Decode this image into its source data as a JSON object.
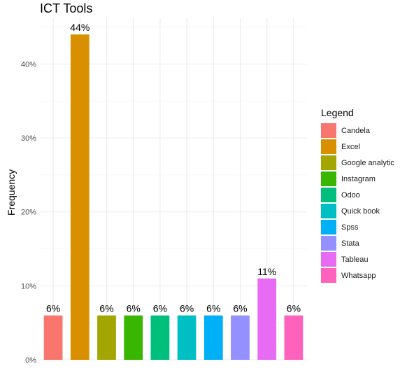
{
  "chart_data": {
    "type": "bar",
    "title": "ICT Tools",
    "ylabel": "Frequency",
    "xlabel": "",
    "categories": [
      "Candela",
      "Excel",
      "Google analytic",
      "Instagram",
      "Odoo",
      "Quick book",
      "Spss",
      "Stata",
      "Tableau",
      "Whatsapp"
    ],
    "values": [
      6,
      44,
      6,
      6,
      6,
      6,
      6,
      6,
      11,
      6
    ],
    "data_labels": [
      "6%",
      "44%",
      "6%",
      "6%",
      "6%",
      "6%",
      "6%",
      "6%",
      "11%",
      "6%"
    ],
    "colors": [
      "#F8766D",
      "#D89000",
      "#A3A500",
      "#39B600",
      "#00BF7D",
      "#00BFC4",
      "#00B0F6",
      "#9590FF",
      "#E76BF3",
      "#FF62BC"
    ],
    "yticks": [
      "0%",
      "10%",
      "20%",
      "30%",
      "40%"
    ],
    "ylim": [
      0,
      46.2
    ],
    "grid": true,
    "legend": {
      "title": "Legend",
      "position": "right"
    }
  }
}
